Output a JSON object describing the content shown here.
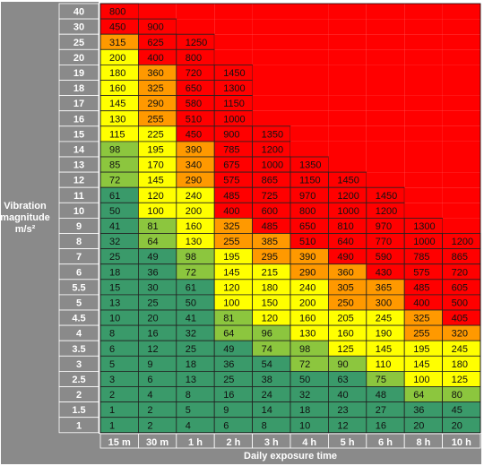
{
  "chart_data": {
    "type": "heatmap",
    "xlabel": "Daily exposure time",
    "ylabel": "Vibration magnitude m/s²",
    "x_categories": [
      "15 m",
      "30 m",
      "1 h",
      "2 h",
      "3 h",
      "4 h",
      "5 h",
      "6 h",
      "8 h",
      "10 h"
    ],
    "y_categories": [
      "40",
      "30",
      "25",
      "20",
      "19",
      "18",
      "17",
      "16",
      "15",
      "14",
      "13",
      "12",
      "11",
      "10",
      "9",
      "8",
      "7",
      "6",
      "5.5",
      "5",
      "4.5",
      "4",
      "3.5",
      "3",
      "2.5",
      "2",
      "1.5",
      "1"
    ],
    "legend_colors": {
      "green": "#3a9a6a",
      "lightgreen": "#8cc63e",
      "yellow": "#ffff00",
      "orange": "#ff9900",
      "red": "#ff0000"
    },
    "rows": [
      {
        "y": "40",
        "values": [
          800,
          null,
          null,
          null,
          null,
          null,
          null,
          null,
          null,
          null
        ]
      },
      {
        "y": "30",
        "values": [
          450,
          900,
          null,
          null,
          null,
          null,
          null,
          null,
          null,
          null
        ]
      },
      {
        "y": "25",
        "values": [
          315,
          625,
          1250,
          null,
          null,
          null,
          null,
          null,
          null,
          null
        ]
      },
      {
        "y": "20",
        "values": [
          200,
          400,
          800,
          null,
          null,
          null,
          null,
          null,
          null,
          null
        ]
      },
      {
        "y": "19",
        "values": [
          180,
          360,
          720,
          1450,
          null,
          null,
          null,
          null,
          null,
          null
        ]
      },
      {
        "y": "18",
        "values": [
          160,
          325,
          650,
          1300,
          null,
          null,
          null,
          null,
          null,
          null
        ]
      },
      {
        "y": "17",
        "values": [
          145,
          290,
          580,
          1150,
          null,
          null,
          null,
          null,
          null,
          null
        ]
      },
      {
        "y": "16",
        "values": [
          130,
          255,
          510,
          1000,
          null,
          null,
          null,
          null,
          null,
          null
        ]
      },
      {
        "y": "15",
        "values": [
          115,
          225,
          450,
          900,
          1350,
          null,
          null,
          null,
          null,
          null
        ]
      },
      {
        "y": "14",
        "values": [
          98,
          195,
          390,
          785,
          1200,
          null,
          null,
          null,
          null,
          null
        ]
      },
      {
        "y": "13",
        "values": [
          85,
          170,
          340,
          675,
          1000,
          1350,
          null,
          null,
          null,
          null
        ]
      },
      {
        "y": "12",
        "values": [
          72,
          145,
          290,
          575,
          865,
          1150,
          1450,
          null,
          null,
          null
        ]
      },
      {
        "y": "11",
        "values": [
          61,
          120,
          240,
          485,
          725,
          970,
          1200,
          1450,
          null,
          null
        ]
      },
      {
        "y": "10",
        "values": [
          50,
          100,
          200,
          400,
          600,
          800,
          1000,
          1200,
          null,
          null
        ]
      },
      {
        "y": "9",
        "values": [
          41,
          81,
          160,
          325,
          485,
          650,
          810,
          970,
          1300,
          null
        ]
      },
      {
        "y": "8",
        "values": [
          32,
          64,
          130,
          255,
          385,
          510,
          640,
          770,
          1000,
          1200
        ]
      },
      {
        "y": "7",
        "values": [
          25,
          49,
          98,
          195,
          295,
          390,
          490,
          590,
          785,
          865
        ]
      },
      {
        "y": "6",
        "values": [
          18,
          36,
          72,
          145,
          215,
          290,
          360,
          430,
          575,
          720
        ]
      },
      {
        "y": "5.5",
        "values": [
          15,
          30,
          61,
          120,
          180,
          240,
          305,
          365,
          485,
          605
        ]
      },
      {
        "y": "5",
        "values": [
          13,
          25,
          50,
          100,
          150,
          200,
          250,
          300,
          400,
          500
        ]
      },
      {
        "y": "4.5",
        "values": [
          10,
          20,
          41,
          81,
          120,
          160,
          205,
          245,
          325,
          405
        ]
      },
      {
        "y": "4",
        "values": [
          8,
          16,
          32,
          64,
          96,
          130,
          160,
          190,
          255,
          320
        ]
      },
      {
        "y": "3.5",
        "values": [
          6,
          12,
          25,
          49,
          74,
          98,
          125,
          145,
          195,
          245
        ]
      },
      {
        "y": "3",
        "values": [
          5,
          9,
          18,
          36,
          54,
          72,
          90,
          110,
          145,
          180
        ]
      },
      {
        "y": "2.5",
        "values": [
          3,
          6,
          13,
          25,
          38,
          50,
          63,
          75,
          100,
          125
        ]
      },
      {
        "y": "2",
        "values": [
          2,
          4,
          8,
          16,
          24,
          32,
          40,
          48,
          64,
          80
        ]
      },
      {
        "y": "1.5",
        "values": [
          1,
          2,
          5,
          9,
          14,
          18,
          23,
          27,
          36,
          45
        ]
      },
      {
        "y": "1",
        "values": [
          1,
          2,
          4,
          6,
          8,
          10,
          12,
          16,
          20,
          20
        ]
      }
    ]
  }
}
